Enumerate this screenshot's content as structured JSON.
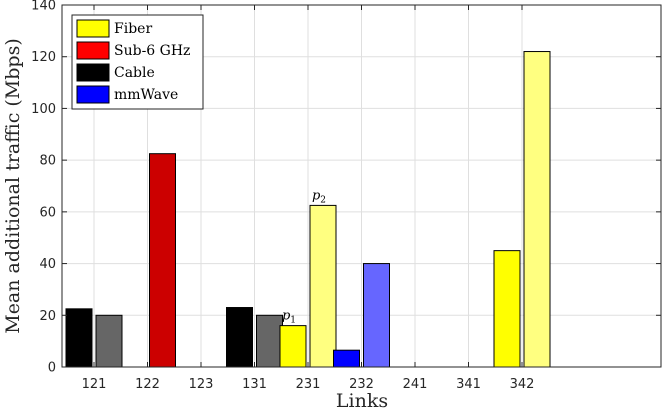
{
  "chart_data": {
    "type": "bar",
    "xlabel": "Links",
    "ylabel": "Mean additional traffic (Mbps)",
    "ylim": [
      0,
      140
    ],
    "yticks": [
      0,
      20,
      40,
      60,
      80,
      100,
      120,
      140
    ],
    "categories": [
      "121",
      "122",
      "123",
      "131",
      "231",
      "232",
      "241",
      "341",
      "342"
    ],
    "grid": true,
    "legend_position": "top-left",
    "series": [
      {
        "name": "Fiber",
        "color": "#ffff00",
        "values": [
          null,
          null,
          null,
          null,
          16,
          null,
          null,
          null,
          45
        ]
      },
      {
        "name": "Sub-6 GHz",
        "color": "#ff0000",
        "values": [
          null,
          82.5,
          null,
          null,
          null,
          null,
          null,
          null,
          null
        ]
      },
      {
        "name": "Cable",
        "color": "#000000",
        "values": [
          22.5,
          null,
          null,
          23,
          null,
          null,
          null,
          null,
          null
        ]
      },
      {
        "name": "mmWave",
        "color": "#0000ff",
        "values": [
          null,
          null,
          null,
          null,
          null,
          6.5,
          null,
          null,
          null
        ]
      }
    ],
    "bars": [
      {
        "category": "121",
        "offset": -1,
        "value": 22.5,
        "color": "#000000"
      },
      {
        "category": "121",
        "offset": 1,
        "value": 20,
        "color": "#666666"
      },
      {
        "category": "122",
        "offset": 1,
        "value": 82.5,
        "color": "#cc0000"
      },
      {
        "category": "131",
        "offset": -1,
        "value": 23,
        "color": "#000000"
      },
      {
        "category": "131",
        "offset": 1,
        "value": 20,
        "color": "#666666"
      },
      {
        "category": "231",
        "offset": -1,
        "value": 16,
        "color": "#ffff00"
      },
      {
        "category": "231",
        "offset": 1,
        "value": 62.5,
        "color": "#ffff80"
      },
      {
        "category": "232",
        "offset": -1,
        "value": 6.5,
        "color": "#0000ff"
      },
      {
        "category": "232",
        "offset": 1,
        "value": 40,
        "color": "#6666ff"
      },
      {
        "category": "342",
        "offset": -1,
        "value": 45,
        "color": "#ffff00"
      },
      {
        "category": "342",
        "offset": 1,
        "value": 122,
        "color": "#ffff80"
      }
    ],
    "annotations": [
      {
        "base": "p",
        "sub": "1",
        "category": "231",
        "offset": -1,
        "value": 16
      },
      {
        "base": "p",
        "sub": "2",
        "category": "231",
        "offset": 1,
        "value": 62.5
      }
    ]
  }
}
